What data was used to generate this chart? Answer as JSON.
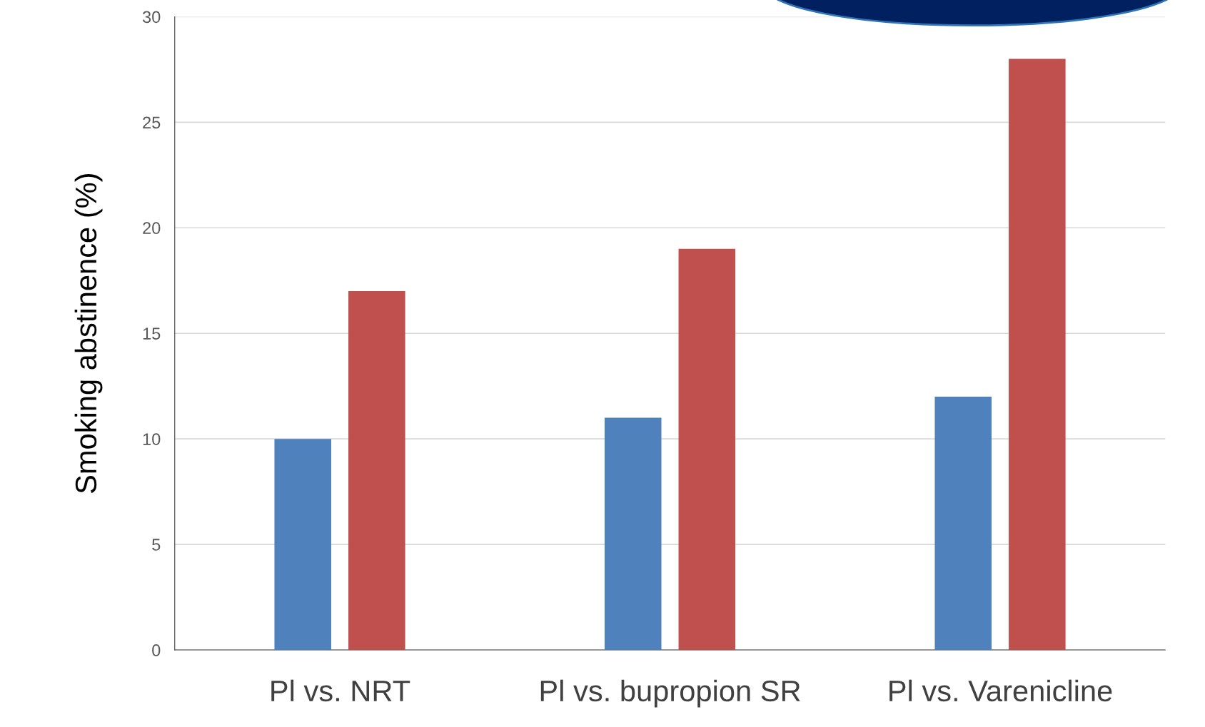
{
  "chart_data": {
    "type": "bar",
    "ylabel": "Smoking abstinence (%)",
    "categories": [
      "Pl vs. NRT",
      "Pl vs. bupropion SR",
      "Pl vs. Varenicline"
    ],
    "series": [
      {
        "color": "#4f81bd",
        "values": [
          10,
          11,
          12
        ]
      },
      {
        "color": "#c0504d",
        "values": [
          17,
          19,
          28
        ]
      }
    ],
    "ylim": [
      0,
      30
    ],
    "yticks": [
      0,
      5,
      10,
      15,
      20,
      25,
      30
    ],
    "grid": "y",
    "legend": false
  }
}
